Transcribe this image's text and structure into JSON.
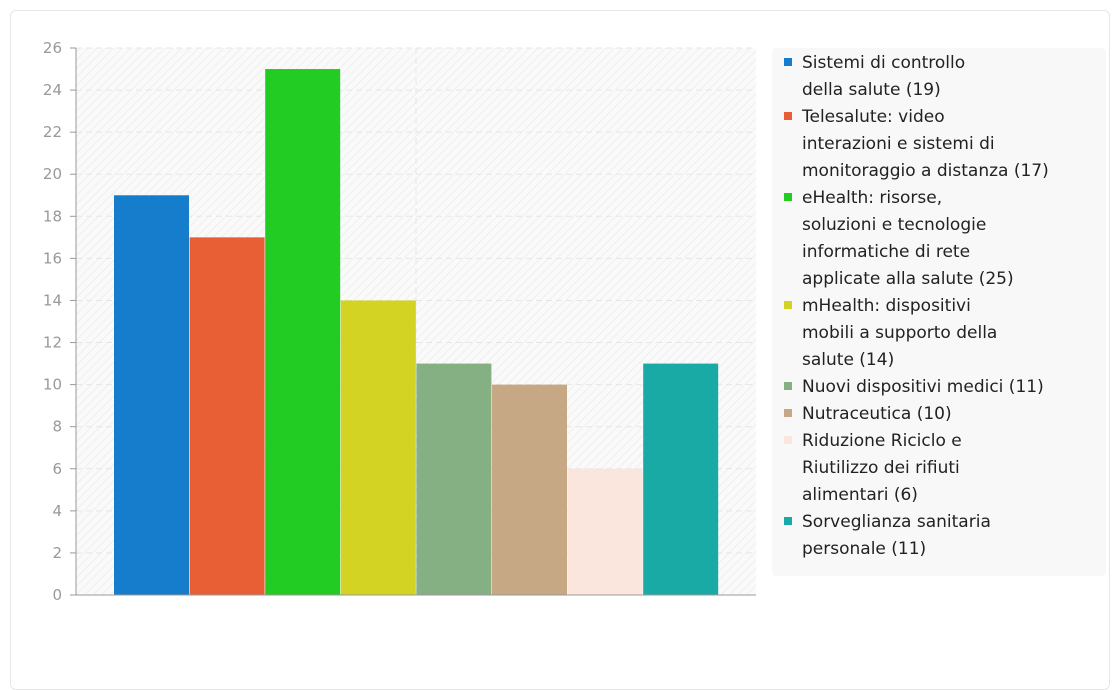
{
  "chart_data": {
    "type": "bar",
    "title": "",
    "xlabel": "",
    "ylabel": "",
    "ylim": [
      0,
      26
    ],
    "yticks": [
      0,
      2,
      4,
      6,
      8,
      10,
      12,
      14,
      16,
      18,
      20,
      22,
      24,
      26
    ],
    "grid": true,
    "legend_position": "right",
    "series": [
      {
        "name": "Sistemi di controllo della salute (19)",
        "value": 19,
        "color": "#167ccc"
      },
      {
        "name": "Telesalute: video interazioni e sistemi di monitoraggio a distanza (17)",
        "value": 17,
        "color": "#e85f35"
      },
      {
        "name": "eHealth: risorse, soluzioni e tecnologie informatiche di rete applicate alla salute (25)",
        "value": 25,
        "color": "#22cc22"
      },
      {
        "name": "mHealth: dispositivi mobili a supporto della salute (14)",
        "value": 14,
        "color": "#d2d322"
      },
      {
        "name": "Nuovi dispositivi medici (11)",
        "value": 11,
        "color": "#84b083"
      },
      {
        "name": "Nutraceutica (10)",
        "value": 10,
        "color": "#c6a984"
      },
      {
        "name": "Riduzione Riciclo e Riutilizzo dei rifiuti alimentari (6)",
        "value": 6,
        "color": "#fbe6de"
      },
      {
        "name": "Sorveglianza sanitaria personale (11)",
        "value": 11,
        "color": "#1aaaa6"
      }
    ]
  },
  "legend": {
    "items": [
      {
        "lines": [
          "Sistemi di controllo",
          "della salute (19)"
        ]
      },
      {
        "lines": [
          "Telesalute: video",
          "interazioni e sistemi di",
          "monitoraggio a distanza (17)"
        ]
      },
      {
        "lines": [
          "eHealth: risorse,",
          "soluzioni e tecnologie",
          "informatiche di rete",
          "applicate alla salute (25)"
        ]
      },
      {
        "lines": [
          "mHealth: dispositivi",
          "mobili a supporto della",
          "salute (14)"
        ]
      },
      {
        "lines": [
          "Nuovi dispositivi medici (11)"
        ]
      },
      {
        "lines": [
          "Nutraceutica (10)"
        ]
      },
      {
        "lines": [
          "Riduzione Riciclo e",
          "Riutilizzo dei rifiuti",
          "alimentari (6)"
        ]
      },
      {
        "lines": [
          "Sorveglianza sanitaria",
          "personale (11)"
        ]
      }
    ]
  }
}
